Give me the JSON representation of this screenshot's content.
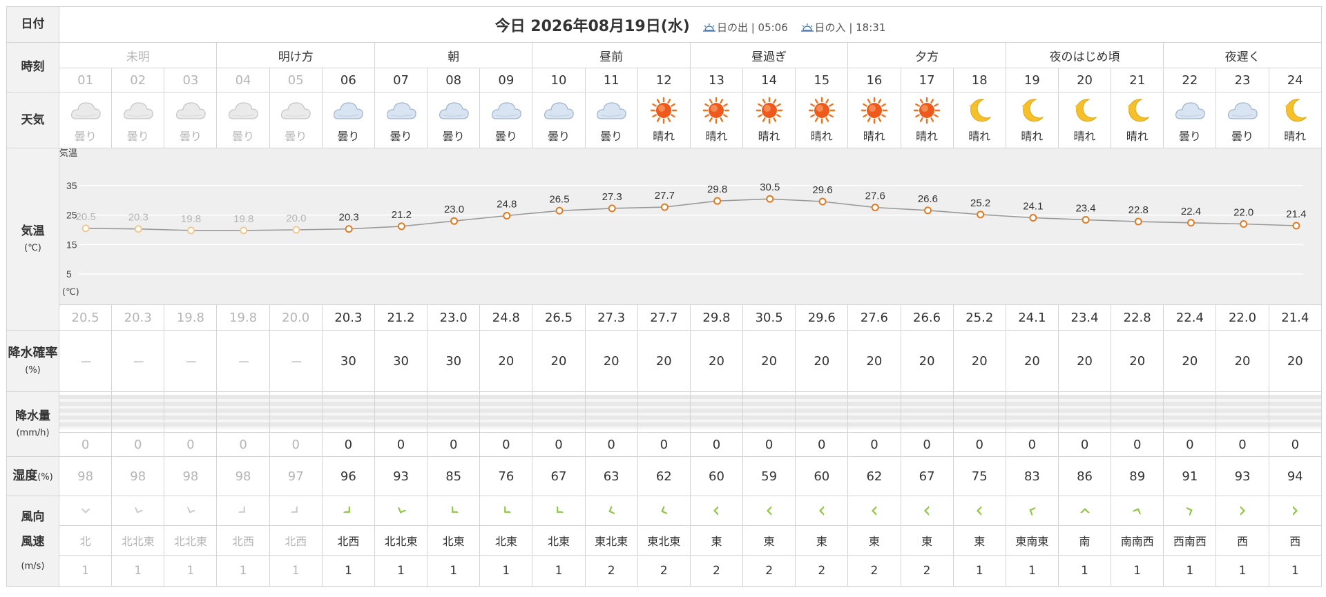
{
  "labels": {
    "date": "日付",
    "time": "時刻",
    "weather": "天気",
    "temp": "気温",
    "temp_unit": "(℃)",
    "pop": "降水確率",
    "pop_unit": "(%)",
    "precip": "降水量",
    "precip_unit": "(mm/h)",
    "humidity": "湿度",
    "humidity_unit": "(%)",
    "wind_dir": "風向",
    "wind_speed": "風速",
    "wind_unit": "(m/s)"
  },
  "header": {
    "title": "今日 2026年08月19日(水)",
    "sunrise_label": "日の出 | 05:06",
    "sunset_label": "日の入 | 18:31"
  },
  "periods": [
    "未明",
    "明け方",
    "朝",
    "昼前",
    "昼過ぎ",
    "夕方",
    "夜のはじめ頃",
    "夜遅く"
  ],
  "hours": [
    "01",
    "02",
    "03",
    "04",
    "05",
    "06",
    "07",
    "08",
    "09",
    "10",
    "11",
    "12",
    "13",
    "14",
    "15",
    "16",
    "17",
    "18",
    "19",
    "20",
    "21",
    "22",
    "23",
    "24"
  ],
  "weather": [
    "曇り",
    "曇り",
    "曇り",
    "曇り",
    "曇り",
    "曇り",
    "曇り",
    "曇り",
    "曇り",
    "曇り",
    "曇り",
    "晴れ",
    "晴れ",
    "晴れ",
    "晴れ",
    "晴れ",
    "晴れ",
    "晴れ",
    "晴れ",
    "晴れ",
    "晴れ",
    "曇り",
    "曇り",
    "晴れ"
  ],
  "weather_icons": [
    "cloud-icon",
    "cloud-icon",
    "cloud-icon",
    "cloud-icon",
    "cloud-icon",
    "cloud-icon",
    "cloud-icon",
    "cloud-icon",
    "cloud-icon",
    "cloud-icon",
    "cloud-icon",
    "sun-icon",
    "sun-icon",
    "sun-icon",
    "sun-icon",
    "sun-icon",
    "sun-icon",
    "moon-icon",
    "moon-icon",
    "moon-icon",
    "moon-icon",
    "cloud-icon",
    "cloud-icon",
    "moon-icon"
  ],
  "temperature": [
    "20.5",
    "20.3",
    "19.8",
    "19.8",
    "20.0",
    "20.3",
    "21.2",
    "23.0",
    "24.8",
    "26.5",
    "27.3",
    "27.7",
    "29.8",
    "30.5",
    "29.6",
    "27.6",
    "26.6",
    "25.2",
    "24.1",
    "23.4",
    "22.8",
    "22.4",
    "22.0",
    "21.4"
  ],
  "precip_probability": [
    "---",
    "---",
    "---",
    "---",
    "---",
    "30",
    "30",
    "30",
    "20",
    "20",
    "20",
    "20",
    "20",
    "20",
    "20",
    "20",
    "20",
    "20",
    "20",
    "20",
    "20",
    "20",
    "20",
    "20"
  ],
  "precipitation": [
    "0",
    "0",
    "0",
    "0",
    "0",
    "0",
    "0",
    "0",
    "0",
    "0",
    "0",
    "0",
    "0",
    "0",
    "0",
    "0",
    "0",
    "0",
    "0",
    "0",
    "0",
    "0",
    "0",
    "0"
  ],
  "humidity": [
    "98",
    "98",
    "98",
    "98",
    "97",
    "96",
    "93",
    "85",
    "76",
    "67",
    "63",
    "62",
    "60",
    "59",
    "60",
    "62",
    "67",
    "75",
    "83",
    "86",
    "89",
    "91",
    "93",
    "94"
  ],
  "wind_direction": [
    "北",
    "北北東",
    "北北東",
    "北西",
    "北西",
    "北西",
    "北北東",
    "北東",
    "北東",
    "北東",
    "東北東",
    "東北東",
    "東",
    "東",
    "東",
    "東",
    "東",
    "東",
    "東南東",
    "南",
    "南南西",
    "西南西",
    "西",
    "西"
  ],
  "wind_speed": [
    "1",
    "1",
    "1",
    "1",
    "1",
    "1",
    "1",
    "1",
    "1",
    "1",
    "2",
    "2",
    "2",
    "2",
    "2",
    "2",
    "2",
    "1",
    "1",
    "1",
    "1",
    "1",
    "1",
    "1"
  ],
  "past_hours_count": 5,
  "chart_data": {
    "type": "line",
    "ylabel": "気温",
    "yunit": "(℃)",
    "ytick_labels": [
      "35",
      "25",
      "15",
      "5"
    ],
    "ylim": [
      0,
      40
    ],
    "categories": [
      "01",
      "02",
      "03",
      "04",
      "05",
      "06",
      "07",
      "08",
      "09",
      "10",
      "11",
      "12",
      "13",
      "14",
      "15",
      "16",
      "17",
      "18",
      "19",
      "20",
      "21",
      "22",
      "23",
      "24"
    ],
    "series": [
      {
        "values": [
          20.5,
          20.3,
          19.8,
          19.8,
          20.0,
          20.3,
          21.2,
          23.0,
          24.8,
          26.5,
          27.3,
          27.7,
          29.8,
          30.5,
          29.6,
          27.6,
          26.6,
          25.2,
          24.1,
          23.4,
          22.8,
          22.4,
          22.0,
          21.4
        ]
      }
    ],
    "data_labels": [
      "20.5",
      "20.3",
      "19.8",
      "19.8",
      "20.0",
      "20.3",
      "21.2",
      "23.0",
      "24.8",
      "26.5",
      "27.3",
      "27.7",
      "29.8",
      "30.5",
      "29.6",
      "27.6",
      "26.6",
      "25.2",
      "24.1",
      "23.4",
      "22.8",
      "22.4",
      "22.0",
      "21.4"
    ],
    "grid": true
  },
  "colors": {
    "line": "#999999",
    "marker_future": "#e07b20",
    "marker_past": "#f0c890",
    "past_text": "#b5b5b5",
    "wind_arrow_future": "#8cc63f",
    "wind_arrow_past": "#cccccc"
  }
}
